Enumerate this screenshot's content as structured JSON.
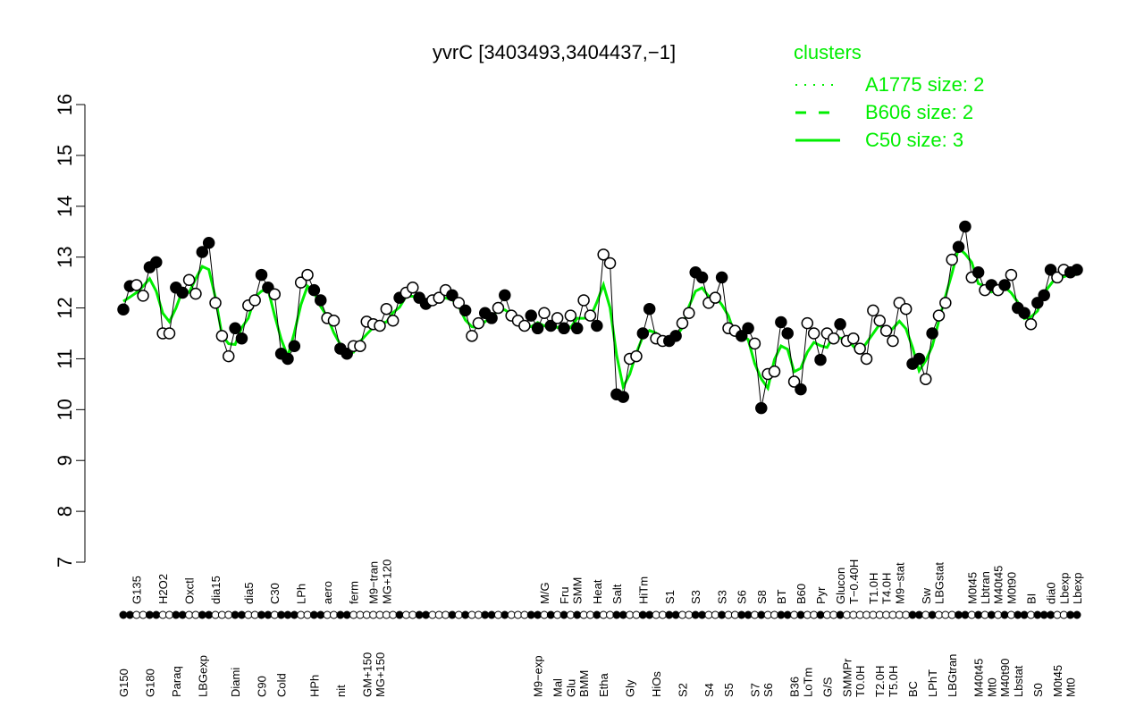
{
  "chart_data": {
    "type": "line",
    "title": "yvrC [3403493,3404437,−1]",
    "xlabel": "",
    "ylabel": "",
    "ylim": [
      7,
      16
    ],
    "yticks": [
      7,
      8,
      9,
      10,
      11,
      12,
      13,
      14,
      15,
      16
    ],
    "grid": false,
    "legend": {
      "position": "top-right",
      "title": "clusters",
      "color": "#00ee00",
      "entries": [
        {
          "label": "A1775 size: 2",
          "style": "dotted"
        },
        {
          "label": "B606 size: 2",
          "style": "dashed"
        },
        {
          "label": "C50 size: 3",
          "style": "solid"
        }
      ]
    },
    "colors": {
      "cluster_line": "#00ee00",
      "points": "#000000"
    },
    "points": [
      [
        "G150",
        11.97,
        1
      ],
      [
        "",
        12.43,
        1
      ],
      [
        "G135",
        12.45,
        0
      ],
      [
        "",
        12.24,
        0
      ],
      [
        "G180",
        12.8,
        1
      ],
      [
        "",
        12.9,
        1
      ],
      [
        "H2O2",
        11.5,
        0
      ],
      [
        "",
        11.5,
        0
      ],
      [
        "Paraq",
        12.4,
        1
      ],
      [
        "",
        12.3,
        1
      ],
      [
        "Oxctl",
        12.55,
        0
      ],
      [
        "",
        12.28,
        0
      ],
      [
        "LBGexp",
        13.1,
        1
      ],
      [
        "",
        13.28,
        1
      ],
      [
        "dia15",
        12.1,
        0
      ],
      [
        "",
        11.45,
        0
      ],
      [
        "",
        11.05,
        0
      ],
      [
        "Diami",
        11.6,
        1
      ],
      [
        "",
        11.4,
        1
      ],
      [
        "dia5",
        12.05,
        0
      ],
      [
        "",
        12.15,
        0
      ],
      [
        "C90",
        12.65,
        1
      ],
      [
        "",
        12.4,
        1
      ],
      [
        "C30",
        12.27,
        0
      ],
      [
        "Cold",
        11.1,
        1
      ],
      [
        "",
        11.0,
        1
      ],
      [
        "",
        11.25,
        1
      ],
      [
        "LPh",
        12.5,
        0
      ],
      [
        "",
        12.65,
        0
      ],
      [
        "HPh",
        12.35,
        1
      ],
      [
        "",
        12.15,
        1
      ],
      [
        "aero",
        11.8,
        0
      ],
      [
        "",
        11.75,
        0
      ],
      [
        "nit",
        11.2,
        1
      ],
      [
        "",
        11.1,
        1
      ],
      [
        "ferm",
        11.25,
        0
      ],
      [
        "",
        11.25,
        0
      ],
      [
        "GM+150",
        11.73,
        0
      ],
      [
        "M9−tran",
        11.68,
        0
      ],
      [
        "MG+150",
        11.65,
        0
      ],
      [
        "MG+120",
        11.98,
        0
      ],
      [
        "",
        11.75,
        0
      ],
      [
        "",
        12.2,
        1
      ],
      [
        "",
        12.3,
        0
      ],
      [
        "",
        12.4,
        0
      ],
      [
        "",
        12.2,
        1
      ],
      [
        "",
        12.08,
        1
      ],
      [
        "",
        12.15,
        0
      ],
      [
        "",
        12.2,
        0
      ],
      [
        "",
        12.35,
        0
      ],
      [
        "",
        12.25,
        1
      ],
      [
        "",
        12.1,
        0
      ],
      [
        "",
        11.95,
        1
      ],
      [
        "",
        11.45,
        0
      ],
      [
        "",
        11.7,
        0
      ],
      [
        "",
        11.9,
        1
      ],
      [
        "",
        11.8,
        1
      ],
      [
        "",
        12.0,
        0
      ],
      [
        "",
        12.25,
        1
      ],
      [
        "",
        11.85,
        0
      ],
      [
        "",
        11.75,
        0
      ],
      [
        "",
        11.65,
        0
      ],
      [
        "",
        11.85,
        1
      ],
      [
        "M9−exp",
        11.6,
        1
      ],
      [
        "M/G",
        11.9,
        0
      ],
      [
        "",
        11.65,
        1
      ],
      [
        "Mal",
        11.8,
        0
      ],
      [
        "Fru",
        11.6,
        1
      ],
      [
        "Glu",
        11.85,
        0
      ],
      [
        "SMM",
        11.6,
        1
      ],
      [
        "BMM",
        12.15,
        0
      ],
      [
        "",
        11.85,
        0
      ],
      [
        "Heat",
        11.65,
        1
      ],
      [
        "Etha",
        13.05,
        0
      ],
      [
        "",
        12.88,
        0
      ],
      [
        "Salt",
        10.3,
        1
      ],
      [
        "",
        10.25,
        1
      ],
      [
        "Gly",
        11.0,
        0
      ],
      [
        "",
        11.05,
        0
      ],
      [
        "HiTm",
        11.5,
        1
      ],
      [
        "",
        11.98,
        1
      ],
      [
        "HiOs",
        11.4,
        0
      ],
      [
        "",
        11.35,
        0
      ],
      [
        "S1",
        11.35,
        1
      ],
      [
        "",
        11.45,
        1
      ],
      [
        "S2",
        11.7,
        0
      ],
      [
        "",
        11.9,
        0
      ],
      [
        "S3",
        12.7,
        1
      ],
      [
        "",
        12.6,
        1
      ],
      [
        "S4",
        12.1,
        0
      ],
      [
        "",
        12.2,
        0
      ],
      [
        "S3",
        12.6,
        1
      ],
      [
        "S5",
        11.6,
        0
      ],
      [
        "",
        11.55,
        0
      ],
      [
        "S6",
        11.45,
        1
      ],
      [
        "",
        11.6,
        1
      ],
      [
        "S7",
        11.3,
        0
      ],
      [
        "S8",
        10.03,
        1
      ],
      [
        "S6",
        10.7,
        0
      ],
      [
        "",
        10.75,
        0
      ],
      [
        "BT",
        11.72,
        1
      ],
      [
        "",
        11.5,
        1
      ],
      [
        "B36",
        10.55,
        0
      ],
      [
        "B60",
        10.4,
        1
      ],
      [
        "LoTm",
        11.7,
        0
      ],
      [
        "",
        11.5,
        0
      ],
      [
        "Pyr",
        10.98,
        1
      ],
      [
        "G/S",
        11.5,
        0
      ],
      [
        "",
        11.4,
        0
      ],
      [
        "Glucon",
        11.68,
        1
      ],
      [
        "SMMPr",
        11.35,
        0
      ],
      [
        "T−0.40H",
        11.4,
        0
      ],
      [
        "T0.0H",
        11.2,
        0
      ],
      [
        "",
        11.0,
        0
      ],
      [
        "T1.0H",
        11.95,
        0
      ],
      [
        "T2.0H",
        11.75,
        0
      ],
      [
        "T4.0H",
        11.55,
        0
      ],
      [
        "T5.0H",
        11.35,
        0
      ],
      [
        "M9−stat",
        12.1,
        0
      ],
      [
        "",
        11.98,
        0
      ],
      [
        "BC",
        10.9,
        1
      ],
      [
        "",
        11.0,
        1
      ],
      [
        "Sw",
        10.6,
        0
      ],
      [
        "LPhT",
        11.5,
        1
      ],
      [
        "LBGstat",
        11.85,
        0
      ],
      [
        "",
        12.1,
        0
      ],
      [
        "LBGtran",
        12.95,
        0
      ],
      [
        "",
        13.2,
        1
      ],
      [
        "",
        13.6,
        1
      ],
      [
        "M0t45",
        12.6,
        0
      ],
      [
        "M40t45",
        12.7,
        1
      ],
      [
        "Lbtran",
        12.35,
        0
      ],
      [
        "Mt0",
        12.45,
        1
      ],
      [
        "M40t45",
        12.35,
        0
      ],
      [
        "M40t90",
        12.45,
        1
      ],
      [
        "M0t90",
        12.65,
        0
      ],
      [
        "Lbstat",
        12.0,
        1
      ],
      [
        "",
        11.9,
        1
      ],
      [
        "BI",
        11.68,
        0
      ],
      [
        "S0",
        12.1,
        1
      ],
      [
        "",
        12.25,
        1
      ],
      [
        "dia0",
        12.75,
        1
      ],
      [
        "M0t45",
        12.6,
        0
      ],
      [
        "Lbexp",
        12.75,
        0
      ],
      [
        "Mt0",
        12.7,
        1
      ],
      [
        "Lbexp",
        12.75,
        1
      ]
    ]
  }
}
